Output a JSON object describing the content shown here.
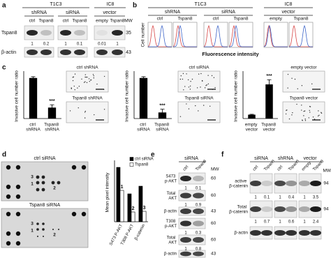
{
  "panels": {
    "a": {
      "letter": "a",
      "group1": "T1C3",
      "group2": "IC8",
      "sub": [
        "shRNA",
        "siRNA",
        "vector"
      ],
      "lanes": [
        "ctrl",
        "Tspan8",
        "ctrl",
        "Tspan8",
        "empty",
        "Tspan8"
      ],
      "mw_label": "MW",
      "rows": [
        "Tspan8",
        "β-actin"
      ],
      "mw": [
        35,
        43
      ],
      "quant": [
        1,
        0.2,
        1,
        0.1,
        0.01,
        1
      ]
    },
    "b": {
      "letter": "b",
      "group1": "T1C3",
      "group2": "IC8",
      "sub": [
        "shRNA",
        "siRNA",
        "vector"
      ],
      "lanes": [
        "ctrl",
        "Tspan8",
        "ctrl",
        "Tspan8",
        "empty",
        "Tspan8"
      ],
      "ylabel": "Cell number",
      "xlabel": "Fluorescence intensity"
    },
    "c": {
      "letter": "c",
      "image_labels": [
        "ctrl shRNA",
        "Tspan8 shRNA",
        "ctrl siRNA",
        "Tspan8 siRNA",
        "empty vector",
        "Tspan8 vector"
      ]
    },
    "d": {
      "letter": "d",
      "array_labels": [
        "ctrl siRNA",
        "Tspan8 siRNA"
      ],
      "spot_labels": [
        "1",
        "2",
        "3"
      ]
    },
    "e": {
      "letter": "e",
      "header": "siRNA",
      "lanes": [
        "ctrl",
        "Tspan8"
      ],
      "mw_label": "MW",
      "rows": [
        "S473 p-AKT",
        "Total AKT",
        "β-actin",
        "T308 p-AKT",
        "Total AKT",
        "β-actin"
      ],
      "mw": [
        60,
        60,
        43,
        60,
        60,
        43
      ],
      "quant": [
        [
          1,
          0.1
        ],
        [
          1,
          0.9
        ],
        [
          1,
          0.3
        ],
        [
          1,
          0.8
        ]
      ]
    },
    "f": {
      "letter": "f",
      "headers": [
        "siRNA",
        "shRNA",
        "vector"
      ],
      "lanes": [
        "ctrl",
        "Tspan8",
        "ctrl",
        "Tspan8",
        "empty",
        "Tspan8"
      ],
      "mw_label": "MW",
      "rows": [
        "active β-catenin",
        "Total β-catenin",
        "β-actin"
      ],
      "mw": [
        94,
        94
      ],
      "quant": [
        [
          1,
          0.1,
          1,
          0.4,
          1,
          3.5
        ],
        [
          1,
          0.7,
          1,
          0.6,
          1,
          2.4
        ]
      ]
    }
  },
  "chart_data": [
    {
      "type": "bar",
      "ylabel": "Invasive cell number ratio",
      "categories": [
        "ctrl shRNA",
        "Tspan8 shRNA"
      ],
      "values": [
        1,
        0.27
      ],
      "errors": [
        0.03,
        0.07
      ],
      "color": "#000000",
      "ylim": [
        0,
        1.1
      ],
      "annotation": "***"
    },
    {
      "type": "bar",
      "ylabel": "Invasive cell number ratio",
      "categories": [
        "ctrl siRNA",
        "Tspan8 siRNA"
      ],
      "values": [
        1,
        0.15
      ],
      "errors": [
        0.03,
        0.08
      ],
      "color": "#000000",
      "ylim": [
        0,
        1.1
      ],
      "annotation": "***"
    },
    {
      "type": "bar",
      "ylabel": "Invasive cell number ratio",
      "categories": [
        "empty vector",
        "Tspan8 vector"
      ],
      "values": [
        1,
        8.8
      ],
      "errors": [
        0.1,
        1.2
      ],
      "color": "#000000",
      "ylim": [
        0,
        11.5
      ],
      "annotation": "***"
    },
    {
      "type": "grouped_bar",
      "ylabel": "Mean pixel intensity",
      "categories": [
        "S473 P-AKT",
        "T308 P-AKT",
        "β-catenin"
      ],
      "series": [
        {
          "name": "ctrl siRNA",
          "color": "#000000",
          "values": [
            390,
            200,
            255
          ]
        },
        {
          "name": "Tspan8",
          "color": "#ffffff",
          "values": [
            225,
            70,
            75
          ]
        }
      ],
      "ylim": [
        0,
        420
      ],
      "annotations": [
        "1",
        "2",
        "3"
      ],
      "legend": "upper right"
    }
  ]
}
